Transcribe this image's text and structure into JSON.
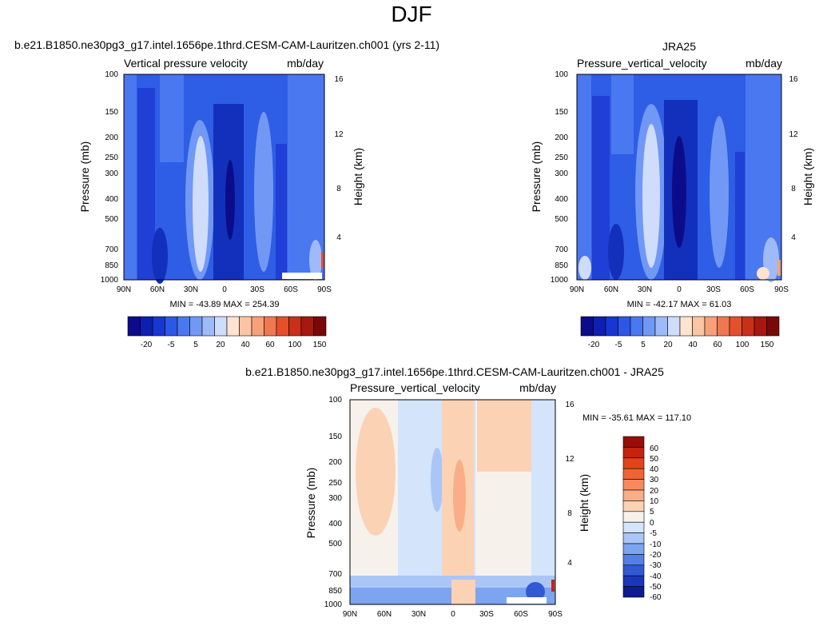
{
  "page": {
    "title": "DJF"
  },
  "chart_data": [
    {
      "type": "heatmap",
      "title": "b.e21.B1850.ne30pg3_g17.intel.1656pe.1thrd.CESM-CAM-Lauritzen.ch001 (yrs 2-11)",
      "subtitle_left": "Vertical pressure velocity",
      "subtitle_right": "mb/day",
      "ylabel": "Pressure (mb)",
      "ylabel_right": "Height (km)",
      "x_ticks": [
        "90N",
        "60N",
        "30N",
        "0",
        "30S",
        "60S",
        "90S"
      ],
      "y_ticks": [
        "100",
        "150",
        "200",
        "250",
        "300",
        "400",
        "500",
        "700",
        "850",
        "1000"
      ],
      "y_right_ticks": [
        "16",
        "12",
        "8",
        "4"
      ],
      "stats": "MIN = -43.89  MAX = 254.39",
      "colorbar_labels": [
        "-20",
        "-5",
        "5",
        "20",
        "40",
        "60",
        "100",
        "150"
      ],
      "colors": [
        "#0c0c8a",
        "#0f1fb2",
        "#1736d2",
        "#2d57e6",
        "#4a78f0",
        "#7198f5",
        "#9fbaf8",
        "#cfdcfb",
        "#fde3d0",
        "#fbc4a4",
        "#f7a07a",
        "#f07850",
        "#e4502c",
        "#c8301a",
        "#a61810",
        "#7a0808"
      ]
    },
    {
      "type": "heatmap",
      "title": "JRA25",
      "subtitle_left": "Pressure_vertical_velocity",
      "subtitle_right": "mb/day",
      "ylabel": "Pressure (mb)",
      "ylabel_right": "Height (km)",
      "x_ticks": [
        "90N",
        "60N",
        "30N",
        "0",
        "30S",
        "60S",
        "90S"
      ],
      "y_ticks": [
        "100",
        "150",
        "200",
        "250",
        "300",
        "400",
        "500",
        "700",
        "850",
        "1000"
      ],
      "y_right_ticks": [
        "16",
        "12",
        "8",
        "4"
      ],
      "stats": "MIN = -42.17  MAX =  61.03",
      "colorbar_labels": [
        "-20",
        "-5",
        "5",
        "20",
        "40",
        "60",
        "100",
        "150"
      ],
      "colors": [
        "#0c0c8a",
        "#0f1fb2",
        "#1736d2",
        "#2d57e6",
        "#4a78f0",
        "#7198f5",
        "#9fbaf8",
        "#cfdcfb",
        "#fde3d0",
        "#fbc4a4",
        "#f7a07a",
        "#f07850",
        "#e4502c",
        "#c8301a",
        "#a61810",
        "#7a0808"
      ]
    },
    {
      "type": "heatmap",
      "title": "b.e21.B1850.ne30pg3_g17.intel.1656pe.1thrd.CESM-CAM-Lauritzen.ch001 - JRA25",
      "subtitle_left": "Pressure_vertical_velocity",
      "subtitle_right": "mb/day",
      "ylabel": "Pressure (mb)",
      "ylabel_right": "Height (km)",
      "x_ticks": [
        "90N",
        "60N",
        "30N",
        "0",
        "30S",
        "60S",
        "90S"
      ],
      "y_ticks": [
        "100",
        "150",
        "200",
        "250",
        "300",
        "400",
        "500",
        "700",
        "850",
        "1000"
      ],
      "y_right_ticks": [
        "16",
        "12",
        "8",
        "4"
      ],
      "stats": "MIN = -35.61  MAX = 117.10",
      "colorbar_labels": [
        "60",
        "50",
        "40",
        "30",
        "20",
        "10",
        "5",
        "0",
        "-5",
        "-10",
        "-20",
        "-30",
        "-40",
        "-50",
        "-60"
      ],
      "colors": [
        "#9a0c06",
        "#c4240e",
        "#e4421c",
        "#f06434",
        "#f68a5e",
        "#f9ae88",
        "#fbd2b4",
        "#f7f1ec",
        "#d4e4fb",
        "#aac6f6",
        "#7da4ee",
        "#557fe4",
        "#3258d4",
        "#1c36ba",
        "#0e1a92"
      ]
    }
  ]
}
